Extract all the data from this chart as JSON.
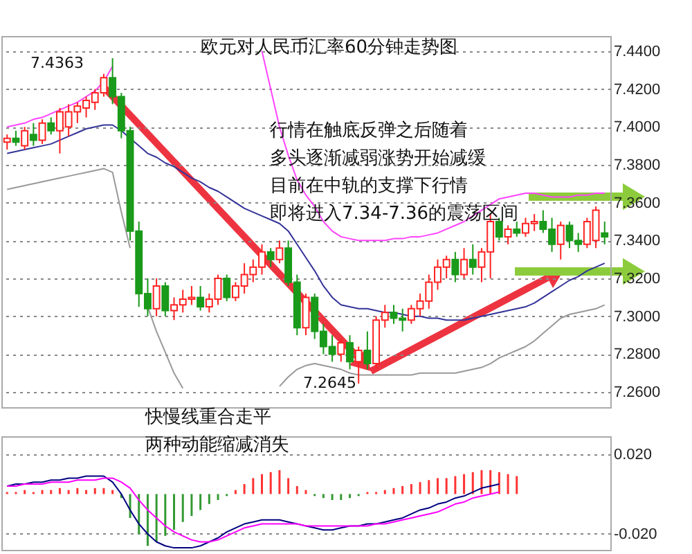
{
  "chart_data": [
    {
      "type": "candlestick",
      "title": "欧元对人民币汇率60分钟走势图",
      "annotations": [
        "行情在触底反弹之后随着",
        "多头逐渐减弱涨势开始减缓",
        "目前在中轨的支撑下行情",
        "即将进入7.34-7.36的震荡区间",
        "7.4363",
        "7.2645"
      ],
      "categories": [
        null,
        null,
        null,
        null,
        null,
        null,
        null,
        null,
        null,
        null,
        null,
        null,
        null,
        null,
        null,
        null,
        null,
        null,
        null,
        null,
        null,
        null,
        null,
        null,
        null,
        null,
        null,
        null,
        null,
        null,
        null,
        null,
        null,
        null,
        null,
        null,
        null,
        null,
        null,
        null,
        null,
        null,
        null,
        null,
        null,
        null,
        null,
        null,
        null,
        null,
        null,
        null,
        null,
        null,
        null,
        null,
        null,
        null,
        null,
        null,
        null,
        null,
        null,
        null,
        null,
        null,
        null,
        null,
        null
      ],
      "ohlc": [
        [
          7.392,
          7.396,
          7.388,
          7.394
        ],
        [
          7.394,
          7.398,
          7.39,
          7.392
        ],
        [
          7.39,
          7.4,
          7.388,
          7.398
        ],
        [
          7.396,
          7.402,
          7.39,
          7.393
        ],
        [
          7.393,
          7.404,
          7.391,
          7.402
        ],
        [
          7.402,
          7.405,
          7.396,
          7.398
        ],
        [
          7.398,
          7.41,
          7.386,
          7.408
        ],
        [
          7.4,
          7.412,
          7.395,
          7.408
        ],
        [
          7.408,
          7.413,
          7.402,
          7.411
        ],
        [
          7.41,
          7.416,
          7.405,
          7.414
        ],
        [
          7.413,
          7.42,
          7.409,
          7.418
        ],
        [
          7.418,
          7.428,
          7.416,
          7.426
        ],
        [
          7.426,
          7.4363,
          7.412,
          7.416
        ],
        [
          7.416,
          7.418,
          7.394,
          7.398
        ],
        [
          7.398,
          7.4,
          7.34,
          7.345
        ],
        [
          7.345,
          7.35,
          7.305,
          7.312
        ],
        [
          7.312,
          7.32,
          7.3,
          7.304
        ],
        [
          7.304,
          7.32,
          7.3,
          7.316
        ],
        [
          7.316,
          7.318,
          7.3,
          7.303
        ],
        [
          7.303,
          7.31,
          7.298,
          7.306
        ],
        [
          7.306,
          7.314,
          7.302,
          7.309
        ],
        [
          7.309,
          7.316,
          7.306,
          7.31
        ],
        [
          7.31,
          7.316,
          7.303,
          7.305
        ],
        [
          7.305,
          7.312,
          7.302,
          7.309
        ],
        [
          7.309,
          7.322,
          7.306,
          7.32
        ],
        [
          7.32,
          7.322,
          7.308,
          7.31
        ],
        [
          7.31,
          7.318,
          7.308,
          7.316
        ],
        [
          7.316,
          7.328,
          7.312,
          7.322
        ],
        [
          7.322,
          7.33,
          7.318,
          7.326
        ],
        [
          7.326,
          7.338,
          7.322,
          7.334
        ],
        [
          7.334,
          7.336,
          7.326,
          7.33
        ],
        [
          7.33,
          7.34,
          7.328,
          7.336
        ],
        [
          7.336,
          7.34,
          7.316,
          7.318
        ],
        [
          7.318,
          7.322,
          7.29,
          7.294
        ],
        [
          7.294,
          7.312,
          7.29,
          7.31
        ],
        [
          7.31,
          7.312,
          7.288,
          7.292
        ],
        [
          7.292,
          7.296,
          7.28,
          7.284
        ],
        [
          7.284,
          7.29,
          7.276,
          7.28
        ],
        [
          7.28,
          7.288,
          7.276,
          7.286
        ],
        [
          7.286,
          7.29,
          7.272,
          7.276
        ],
        [
          7.276,
          7.284,
          7.2645,
          7.282
        ],
        [
          7.282,
          7.292,
          7.272,
          7.275
        ],
        [
          7.275,
          7.3,
          7.272,
          7.298
        ],
        [
          7.298,
          7.306,
          7.294,
          7.302
        ],
        [
          7.302,
          7.306,
          7.296,
          7.299
        ],
        [
          7.299,
          7.304,
          7.292,
          7.298
        ],
        [
          7.298,
          7.306,
          7.296,
          7.304
        ],
        [
          7.304,
          7.312,
          7.3,
          7.308
        ],
        [
          7.308,
          7.322,
          7.304,
          7.318
        ],
        [
          7.318,
          7.33,
          7.314,
          7.326
        ],
        [
          7.326,
          7.332,
          7.32,
          7.33
        ],
        [
          7.33,
          7.334,
          7.318,
          7.322
        ],
        [
          7.322,
          7.336,
          7.32,
          7.33
        ],
        [
          7.33,
          7.338,
          7.322,
          7.326
        ],
        [
          7.326,
          7.336,
          7.318,
          7.334
        ],
        [
          7.334,
          7.354,
          7.32,
          7.35
        ],
        [
          7.35,
          7.352,
          7.34,
          7.342
        ],
        [
          7.342,
          7.348,
          7.338,
          7.346
        ],
        [
          7.346,
          7.35,
          7.342,
          7.344
        ],
        [
          7.344,
          7.352,
          7.342,
          7.349
        ],
        [
          7.349,
          7.354,
          7.345,
          7.35
        ],
        [
          7.35,
          7.356,
          7.344,
          7.346
        ],
        [
          7.346,
          7.352,
          7.334,
          7.338
        ],
        [
          7.338,
          7.35,
          7.33,
          7.348
        ],
        [
          7.348,
          7.35,
          7.336,
          7.34
        ],
        [
          7.34,
          7.344,
          7.334,
          7.338
        ],
        [
          7.338,
          7.352,
          7.336,
          7.35
        ],
        [
          7.34,
          7.358,
          7.336,
          7.356
        ],
        [
          7.344,
          7.35,
          7.338,
          7.342
        ]
      ],
      "colors": [
        "#ff2222",
        "#1a9a1a",
        "#ff2222",
        "#1a9a1a",
        "#ff2222",
        "#1a9a1a",
        "#ff2222",
        "#ff2222",
        "#ff2222",
        "#ff2222",
        "#ff2222",
        "#ff2222",
        "#1a9a1a",
        "#1a9a1a",
        "#1a9a1a",
        "#1a9a1a",
        "#1a9a1a",
        "#ff2222",
        "#1a9a1a",
        "#ff2222",
        "#ff2222",
        "#ff2222",
        "#1a9a1a",
        "#ff2222",
        "#ff2222",
        "#1a9a1a",
        "#ff2222",
        "#ff2222",
        "#ff2222",
        "#ff2222",
        "#1a9a1a",
        "#ff2222",
        "#1a9a1a",
        "#1a9a1a",
        "#ff2222",
        "#1a9a1a",
        "#1a9a1a",
        "#1a9a1a",
        "#ff2222",
        "#1a9a1a",
        "#ff2222",
        "#1a9a1a",
        "#ff2222",
        "#ff2222",
        "#1a9a1a",
        "#1a9a1a",
        "#ff2222",
        "#ff2222",
        "#ff2222",
        "#ff2222",
        "#ff2222",
        "#1a9a1a",
        "#ff2222",
        "#1a9a1a",
        "#ff2222",
        "#ff2222",
        "#1a9a1a",
        "#ff2222",
        "#1a9a1a",
        "#ff2222",
        "#ff2222",
        "#1a9a1a",
        "#1a9a1a",
        "#ff2222",
        "#1a9a1a",
        "#1a9a1a",
        "#ff2222",
        "#ff2222",
        "#1a9a1a"
      ],
      "series": [
        {
          "type": "line",
          "color": "#ff44ff",
          "values": [
            7.4,
            7.401,
            7.402,
            7.404,
            7.405,
            7.407,
            7.409,
            7.411,
            7.413,
            7.416,
            7.419,
            7.424,
            7.432,
            null,
            null,
            null,
            null,
            null,
            null,
            null,
            null,
            null,
            null,
            null,
            null,
            null,
            null,
            null,
            null,
            7.44,
            7.42,
            7.4,
            7.385,
            7.372,
            7.364,
            7.358,
            7.35,
            7.345,
            7.342,
            7.341,
            7.34,
            7.34,
            7.34,
            7.34,
            7.341,
            7.341,
            7.342,
            7.342,
            7.343,
            7.344,
            7.346,
            7.348,
            7.35,
            7.353,
            7.356,
            7.359,
            7.362,
            7.363,
            7.364,
            7.365,
            7.365,
            7.364,
            7.363,
            7.363,
            7.363,
            7.364,
            7.364,
            7.365,
            7.365
          ]
        },
        {
          "type": "line",
          "color": "#333399",
          "values": [
            7.386,
            7.387,
            7.388,
            7.389,
            7.39,
            7.391,
            7.393,
            7.395,
            7.397,
            7.399,
            7.4,
            7.401,
            7.401,
            7.398,
            7.394,
            7.39,
            7.386,
            7.384,
            7.381,
            7.379,
            7.376,
            7.373,
            7.371,
            7.368,
            7.366,
            7.363,
            7.36,
            7.357,
            7.355,
            7.353,
            7.351,
            7.349,
            7.345,
            7.338,
            7.331,
            7.324,
            7.316,
            7.31,
            7.306,
            7.305,
            7.304,
            7.304,
            7.303,
            7.302,
            7.302,
            7.301,
            7.3,
            7.3,
            7.299,
            7.299,
            7.298,
            7.298,
            7.298,
            7.299,
            7.3,
            7.301,
            7.302,
            7.303,
            7.304,
            7.305,
            7.307,
            7.31,
            7.313,
            7.316,
            7.319,
            7.321,
            7.324,
            7.326,
            7.328
          ]
        },
        {
          "type": "line",
          "color": "#999999",
          "values": [
            7.367,
            7.368,
            7.369,
            7.37,
            7.371,
            7.372,
            7.373,
            7.374,
            7.375,
            7.376,
            7.377,
            7.378,
            7.376,
            7.355,
            7.336,
            null,
            7.305,
            7.292,
            7.281,
            7.27,
            7.262,
            null,
            null,
            null,
            null,
            null,
            null,
            null,
            null,
            null,
            null,
            7.263,
            7.268,
            7.272,
            7.274,
            7.275,
            7.274,
            7.273,
            7.272,
            7.27,
            7.269,
            7.269,
            7.269,
            7.269,
            7.269,
            7.269,
            7.269,
            7.27,
            7.27,
            7.27,
            7.27,
            7.27,
            7.271,
            7.272,
            7.273,
            7.275,
            7.278,
            7.28,
            7.282,
            7.284,
            7.287,
            7.291,
            7.295,
            7.299,
            7.301,
            7.302,
            7.303,
            7.304,
            7.306
          ]
        }
      ],
      "ylim": [
        7.252,
        7.448
      ],
      "yticks": [
        {
          "value": 7.26,
          "label": "7.2600"
        },
        {
          "value": 7.28,
          "label": "7.2800"
        },
        {
          "value": 7.3,
          "label": "7.3000"
        },
        {
          "value": 7.32,
          "label": "7.3200"
        },
        {
          "value": 7.34,
          "label": "7.3400"
        },
        {
          "value": 7.36,
          "label": "7.3600"
        },
        {
          "value": 7.38,
          "label": "7.3800"
        },
        {
          "value": 7.4,
          "label": "7.4000"
        },
        {
          "value": 7.42,
          "label": "7.4200"
        },
        {
          "value": 7.44,
          "label": "7.4400"
        }
      ],
      "grid": "y"
    },
    {
      "type": "bar",
      "annotations": [
        "快慢线重合走平",
        "两种动能缩减消失"
      ],
      "categories": [
        null,
        null,
        null,
        null,
        null,
        null,
        null,
        null,
        null,
        null,
        null,
        null,
        null,
        null,
        null,
        null,
        null,
        null,
        null,
        null,
        null,
        null,
        null,
        null,
        null,
        null,
        null,
        null,
        null,
        null,
        null,
        null,
        null,
        null,
        null,
        null,
        null,
        null,
        null,
        null,
        null,
        null,
        null,
        null,
        null,
        null,
        null,
        null,
        null,
        null,
        null,
        null,
        null,
        null,
        null,
        null,
        null,
        null,
        null,
        null,
        null,
        null,
        null,
        null,
        null,
        null,
        null,
        null,
        null
      ],
      "series": [
        {
          "type": "bar",
          "values": [
            0.001,
            0.001,
            0.002,
            0.001,
            0.002,
            0.002,
            0.003,
            0.002,
            0.003,
            0.002,
            0.003,
            0.003,
            0.002,
            -0.002,
            -0.012,
            -0.02,
            -0.026,
            -0.024,
            -0.021,
            -0.018,
            -0.014,
            -0.011,
            -0.008,
            -0.005,
            -0.003,
            -0.001,
            0.002,
            0.005,
            0.008,
            0.01,
            0.011,
            0.012,
            0.008,
            0.004,
            0.002,
            -0.001,
            -0.002,
            -0.003,
            -0.003,
            -0.002,
            -0.001,
            0.001,
            0.001,
            0.002,
            0.003,
            0.004,
            0.005,
            0.006,
            0.007,
            0.008,
            0.008,
            0.009,
            0.01,
            0.011,
            0.012,
            0.012,
            0.011,
            0.01,
            0.009,
            null,
            null,
            null,
            null,
            null,
            null,
            null,
            null,
            null,
            null
          ],
          "colors": [
            "#ff3333",
            "#ff3333",
            "#ff3333",
            "#ff3333",
            "#ff3333",
            "#ff3333",
            "#ff3333",
            "#ff3333",
            "#ff3333",
            "#ff3333",
            "#ff3333",
            "#ff3333",
            "#ff3333",
            "#339933",
            "#339933",
            "#339933",
            "#339933",
            "#339933",
            "#339933",
            "#339933",
            "#339933",
            "#339933",
            "#339933",
            "#339933",
            "#339933",
            "#339933",
            "#ff3333",
            "#ff3333",
            "#ff3333",
            "#ff3333",
            "#ff3333",
            "#ff3333",
            "#ff3333",
            "#ff3333",
            "#ff3333",
            "#339933",
            "#339933",
            "#339933",
            "#339933",
            "#339933",
            "#339933",
            "#ff3333",
            "#ff3333",
            "#ff3333",
            "#ff3333",
            "#ff3333",
            "#ff3333",
            "#ff3333",
            "#ff3333",
            "#ff3333",
            "#ff3333",
            "#ff3333",
            "#ff3333",
            "#ff3333",
            "#ff3333",
            "#ff3333",
            "#ff3333",
            "#ff3333",
            "#ff3333",
            null,
            null,
            null,
            null,
            null,
            null,
            null,
            null,
            null,
            null
          ]
        },
        {
          "type": "line",
          "color": "#000080",
          "values": [
            0.004,
            0.005,
            0.005,
            0.006,
            0.006,
            0.007,
            0.007,
            0.008,
            0.008,
            0.009,
            0.009,
            0.009,
            0.006,
            0.0,
            -0.008,
            -0.015,
            -0.02,
            -0.024,
            -0.026,
            -0.027,
            -0.027,
            -0.027,
            -0.026,
            -0.024,
            -0.022,
            -0.019,
            -0.017,
            -0.015,
            -0.014,
            -0.013,
            -0.013,
            -0.013,
            -0.014,
            -0.015,
            -0.016,
            -0.017,
            -0.018,
            -0.018,
            -0.017,
            -0.016,
            -0.016,
            -0.015,
            -0.015,
            -0.014,
            -0.013,
            -0.012,
            -0.01,
            -0.008,
            -0.007,
            -0.005,
            -0.004,
            -0.002,
            -0.001,
            0.001,
            0.003,
            0.004,
            0.005,
            null,
            null,
            null,
            null,
            null,
            null,
            null,
            null,
            null,
            null,
            null,
            null
          ]
        },
        {
          "type": "line",
          "color": "#ff00ff",
          "values": [
            0.004,
            0.004,
            0.005,
            0.005,
            0.005,
            0.006,
            0.006,
            0.006,
            0.007,
            0.007,
            0.007,
            0.008,
            0.008,
            0.006,
            0.003,
            -0.003,
            -0.008,
            -0.012,
            -0.016,
            -0.019,
            -0.021,
            -0.023,
            -0.024,
            -0.024,
            -0.023,
            -0.021,
            -0.019,
            -0.017,
            -0.016,
            -0.015,
            -0.015,
            -0.015,
            -0.015,
            -0.015,
            -0.016,
            -0.016,
            -0.016,
            -0.016,
            -0.016,
            -0.016,
            -0.016,
            -0.016,
            -0.015,
            -0.015,
            -0.014,
            -0.013,
            -0.012,
            -0.011,
            -0.01,
            -0.009,
            -0.007,
            -0.005,
            -0.004,
            -0.002,
            -0.001,
            0.0,
            0.001,
            null,
            null,
            null,
            null,
            null,
            null,
            null,
            null,
            null,
            null,
            null,
            null
          ]
        }
      ],
      "ylim": [
        -0.028,
        0.029
      ],
      "yticks": [
        {
          "value": 0.02,
          "label": "0.020"
        },
        {
          "value": -0.02,
          "label": "-0.020"
        }
      ],
      "grid": "y"
    }
  ]
}
